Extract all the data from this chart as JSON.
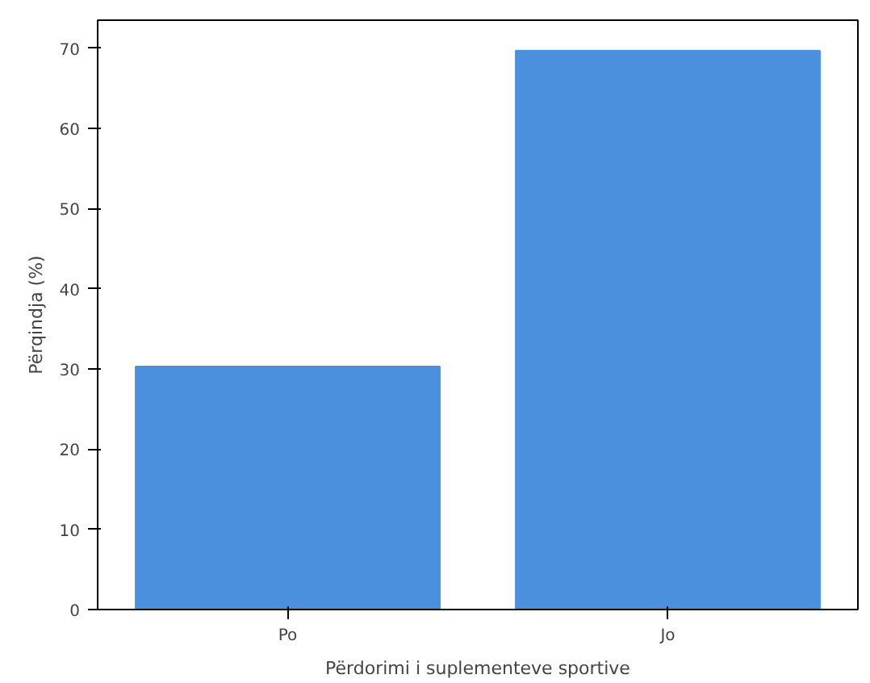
{
  "chart_data": {
    "type": "bar",
    "xlabel": "Përdorimi i suplementeve sportive",
    "ylabel": "Përqindja (%)",
    "categories": [
      "Po",
      "Jo"
    ],
    "values": [
      30.3,
      69.7
    ],
    "color": "#4a90dc",
    "ylim": [
      0,
      73.5
    ],
    "yticks": [
      0,
      10,
      20,
      30,
      40,
      50,
      60,
      70
    ],
    "grid": false
  }
}
